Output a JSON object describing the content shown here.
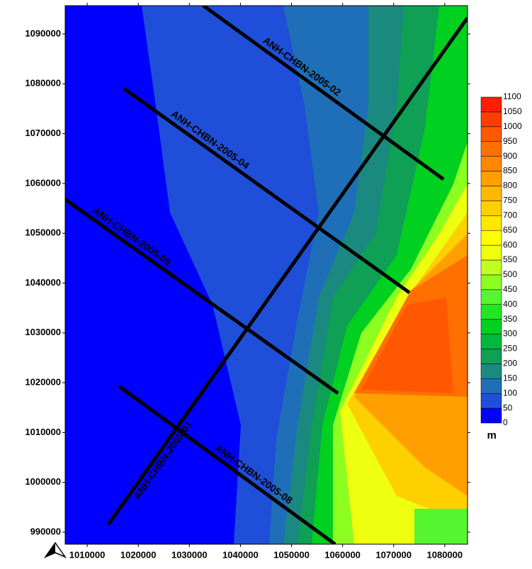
{
  "map": {
    "xlim": [
      1005690,
      1084460
    ],
    "ylim": [
      987580,
      1095690
    ],
    "xticks": [
      1010000,
      1020000,
      1030000,
      1040000,
      1050000,
      1060000,
      1070000,
      1080000
    ],
    "yticks": [
      990000,
      1000000,
      1010000,
      1020000,
      1030000,
      1040000,
      1050000,
      1060000,
      1070000,
      1080000,
      1090000
    ],
    "colorbar": {
      "levels": [
        0,
        50,
        100,
        150,
        200,
        250,
        300,
        350,
        400,
        450,
        500,
        550,
        600,
        650,
        700,
        750,
        800,
        850,
        900,
        950,
        1000,
        1050,
        1100
      ],
      "colors": [
        "#0000ff",
        "#1f4fd8",
        "#1e6fb8",
        "#1a8a80",
        "#0f9f55",
        "#00b840",
        "#00d020",
        "#20e820",
        "#55f530",
        "#8cff20",
        "#c0ff20",
        "#eeff10",
        "#ffff00",
        "#ffe800",
        "#ffd000",
        "#ffb800",
        "#ffa000",
        "#ff8800",
        "#ff7000",
        "#ff5800",
        "#ff3c00",
        "#ff1e00"
      ],
      "unit": "m"
    },
    "lines": [
      {
        "label": "ANH-CHBN-2005-02",
        "start": [
          1032730,
          1095690
        ],
        "end": [
          1079750,
          1060840
        ]
      },
      {
        "label": "ANH-CHBN-2005-04",
        "start": [
          1017200,
          1079050
        ],
        "end": [
          1073090,
          1038080
        ]
      },
      {
        "label": "ANH-CHBN-2005-06",
        "start": [
          1005410,
          1057000
        ],
        "end": [
          1059080,
          1017880
        ]
      },
      {
        "label": "ANH-CHBN-2005-08",
        "start": [
          1016230,
          1019300
        ],
        "end": [
          1058530,
          987580
        ]
      },
      {
        "label": "ANH-CHBN-2005-01",
        "start": [
          1014150,
          991560
        ],
        "end": [
          1084460,
          1093270
        ]
      }
    ]
  }
}
